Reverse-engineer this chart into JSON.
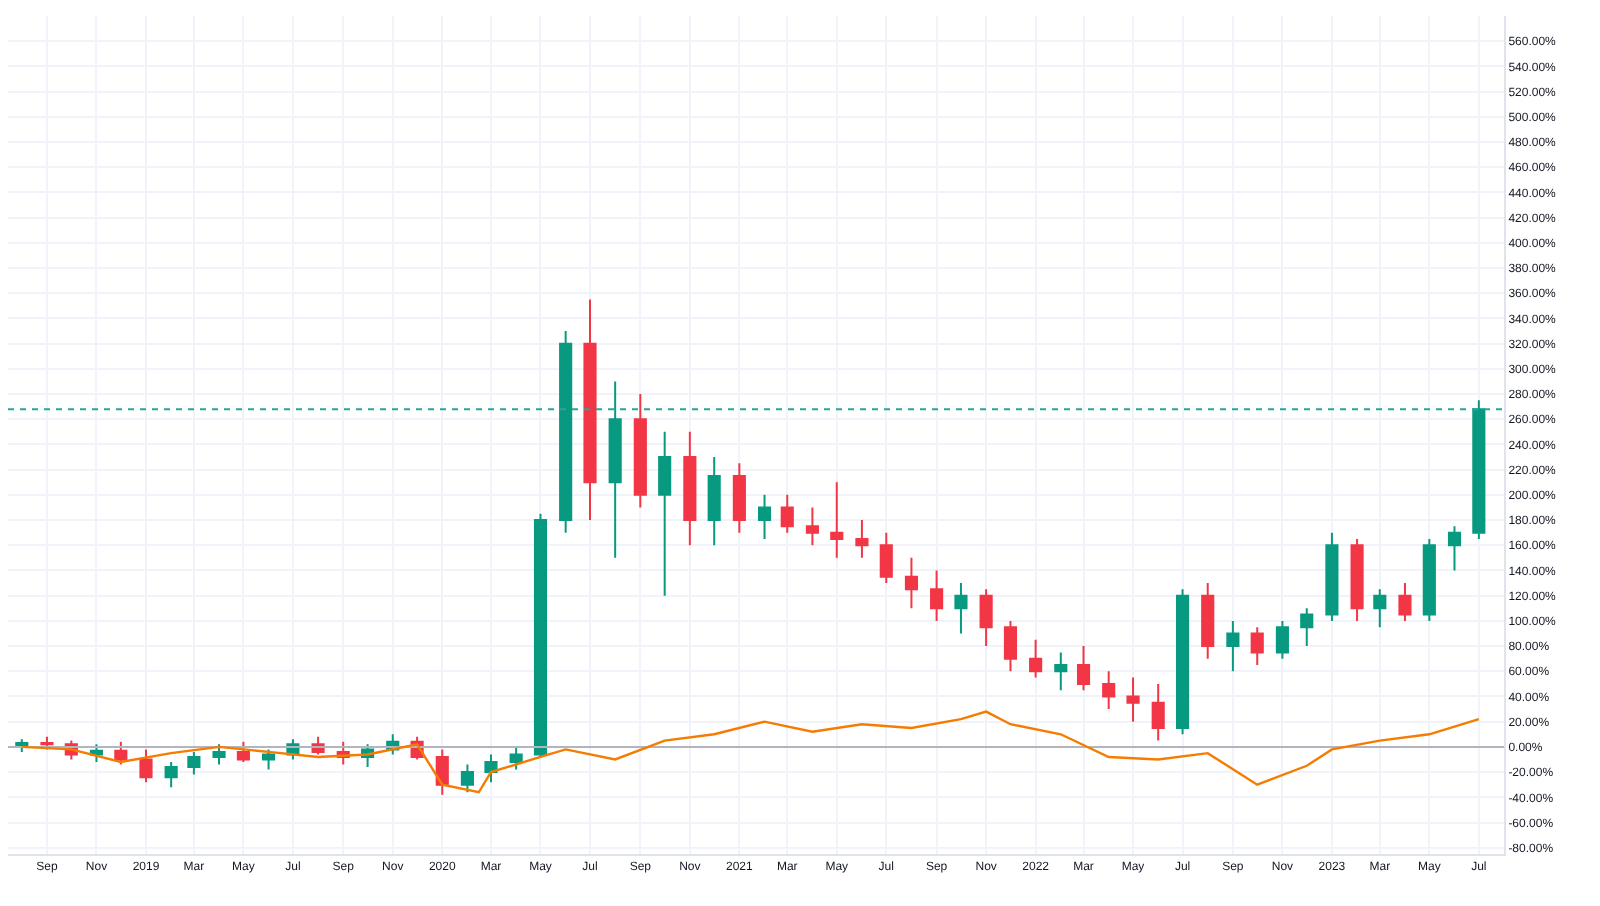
{
  "chart_data": {
    "type": "candlestick",
    "x": [
      "2018-08",
      "2018-09",
      "2018-10",
      "2018-11",
      "2018-12",
      "2019-01",
      "2019-02",
      "2019-03",
      "2019-04",
      "2019-05",
      "2019-06",
      "2019-07",
      "2019-08",
      "2019-09",
      "2019-10",
      "2019-11",
      "2019-12",
      "2020-01",
      "2020-02",
      "2020-03",
      "2020-04",
      "2020-05",
      "2020-06",
      "2020-07",
      "2020-08",
      "2020-09",
      "2020-10",
      "2020-11",
      "2020-12",
      "2021-01",
      "2021-02",
      "2021-03",
      "2021-04",
      "2021-05",
      "2021-06",
      "2021-07",
      "2021-08",
      "2021-09",
      "2021-10",
      "2021-11",
      "2021-12",
      "2022-01",
      "2022-02",
      "2022-03",
      "2022-04",
      "2022-05",
      "2022-06",
      "2022-07",
      "2022-08",
      "2022-09",
      "2022-10",
      "2022-11",
      "2022-12",
      "2023-01",
      "2023-02",
      "2023-03",
      "2023-04",
      "2023-05",
      "2023-06",
      "2023-07"
    ],
    "ohlc": [
      [
        0,
        6,
        -4,
        3
      ],
      [
        3,
        8,
        -2,
        2
      ],
      [
        2,
        5,
        -10,
        -6
      ],
      [
        -6,
        2,
        -12,
        -3
      ],
      [
        -3,
        4,
        -14,
        -10
      ],
      [
        -10,
        -2,
        -28,
        -24
      ],
      [
        -24,
        -12,
        -32,
        -16
      ],
      [
        -16,
        -4,
        -22,
        -8
      ],
      [
        -8,
        2,
        -14,
        -4
      ],
      [
        -4,
        4,
        -12,
        -10
      ],
      [
        -10,
        -2,
        -18,
        -6
      ],
      [
        -6,
        6,
        -10,
        2
      ],
      [
        2,
        8,
        -6,
        -4
      ],
      [
        -4,
        4,
        -14,
        -8
      ],
      [
        -8,
        2,
        -16,
        -2
      ],
      [
        -2,
        10,
        -6,
        4
      ],
      [
        4,
        8,
        -10,
        -8
      ],
      [
        -8,
        -2,
        -38,
        -30
      ],
      [
        -30,
        -14,
        -36,
        -20
      ],
      [
        -20,
        -6,
        -28,
        -12
      ],
      [
        -12,
        0,
        -18,
        -6
      ],
      [
        -6,
        185,
        -8,
        180
      ],
      [
        180,
        330,
        170,
        320
      ],
      [
        320,
        355,
        180,
        210
      ],
      [
        210,
        290,
        150,
        260
      ],
      [
        260,
        280,
        190,
        200
      ],
      [
        200,
        250,
        120,
        230
      ],
      [
        230,
        250,
        160,
        180
      ],
      [
        180,
        230,
        160,
        215
      ],
      [
        215,
        225,
        170,
        180
      ],
      [
        180,
        200,
        165,
        190
      ],
      [
        190,
        200,
        170,
        175
      ],
      [
        175,
        190,
        160,
        170
      ],
      [
        170,
        210,
        150,
        165
      ],
      [
        165,
        180,
        150,
        160
      ],
      [
        160,
        170,
        130,
        135
      ],
      [
        135,
        150,
        110,
        125
      ],
      [
        125,
        140,
        100,
        110
      ],
      [
        110,
        130,
        90,
        120
      ],
      [
        120,
        125,
        80,
        95
      ],
      [
        95,
        100,
        60,
        70
      ],
      [
        70,
        85,
        55,
        60
      ],
      [
        60,
        75,
        45,
        65
      ],
      [
        65,
        80,
        45,
        50
      ],
      [
        50,
        60,
        30,
        40
      ],
      [
        40,
        55,
        20,
        35
      ],
      [
        35,
        50,
        5,
        15
      ],
      [
        15,
        125,
        10,
        120
      ],
      [
        120,
        130,
        70,
        80
      ],
      [
        80,
        100,
        60,
        90
      ],
      [
        90,
        95,
        65,
        75
      ],
      [
        75,
        100,
        70,
        95
      ],
      [
        95,
        110,
        80,
        105
      ],
      [
        105,
        170,
        100,
        160
      ],
      [
        160,
        165,
        100,
        110
      ],
      [
        110,
        125,
        95,
        120
      ],
      [
        120,
        130,
        100,
        105
      ],
      [
        105,
        165,
        100,
        160
      ],
      [
        160,
        175,
        140,
        170
      ],
      [
        170,
        275,
        165,
        268
      ]
    ],
    "colors": [
      "#089981",
      "#f23645",
      "#f23645",
      "#089981",
      "#f23645",
      "#f23645",
      "#089981",
      "#089981",
      "#089981",
      "#f23645",
      "#089981",
      "#089981",
      "#f23645",
      "#f23645",
      "#089981",
      "#089981",
      "#f23645",
      "#f23645",
      "#089981",
      "#089981",
      "#089981",
      "#089981",
      "#089981",
      "#f23645",
      "#089981",
      "#f23645",
      "#089981",
      "#f23645",
      "#089981",
      "#f23645",
      "#089981",
      "#f23645",
      "#f23645",
      "#f23645",
      "#f23645",
      "#f23645",
      "#f23645",
      "#f23645",
      "#089981",
      "#f23645",
      "#f23645",
      "#f23645",
      "#089981",
      "#f23645",
      "#f23645",
      "#f23645",
      "#f23645",
      "#089981",
      "#f23645",
      "#089981",
      "#f23645",
      "#089981",
      "#089981",
      "#089981",
      "#f23645",
      "#089981",
      "#f23645",
      "#089981",
      "#089981",
      "#089981"
    ],
    "series": [
      {
        "type": "line",
        "color": "#f57c00",
        "x": [
          "2018-08",
          "2018-10",
          "2018-12",
          "2019-02",
          "2019-04",
          "2019-06",
          "2019-08",
          "2019-10",
          "2019-12",
          "2020-01",
          "2020-02-15",
          "2020-03",
          "2020-05",
          "2020-06",
          "2020-08",
          "2020-10",
          "2020-12",
          "2021-02",
          "2021-04",
          "2021-06",
          "2021-08",
          "2021-10",
          "2021-11",
          "2021-12",
          "2022-02",
          "2022-04",
          "2022-06",
          "2022-08",
          "2022-10",
          "2022-12",
          "2023-01",
          "2023-03",
          "2023-05",
          "2023-07"
        ],
        "values": [
          0,
          -2,
          -12,
          -5,
          0,
          -4,
          -8,
          -6,
          2,
          -30,
          -36,
          -20,
          -8,
          -2,
          -10,
          5,
          10,
          20,
          12,
          18,
          15,
          22,
          28,
          18,
          10,
          -8,
          -10,
          -5,
          -30,
          -15,
          -2,
          5,
          10,
          22
        ]
      }
    ],
    "ref_lines": [
      {
        "axis": "y",
        "value": 0,
        "color": "#b2b5be",
        "line_style": "solid"
      },
      {
        "axis": "y",
        "value": 268,
        "color": "#26a69a",
        "line_style": "dotted"
      }
    ],
    "xlim": [
      "2018-07-15",
      "2023-08-01"
    ],
    "xticks": [
      {
        "value": "2018-09",
        "label": "Sep"
      },
      {
        "value": "2018-11",
        "label": "Nov"
      },
      {
        "value": "2019-01",
        "label": "2019"
      },
      {
        "value": "2019-03",
        "label": "Mar"
      },
      {
        "value": "2019-05",
        "label": "May"
      },
      {
        "value": "2019-07",
        "label": "Jul"
      },
      {
        "value": "2019-09",
        "label": "Sep"
      },
      {
        "value": "2019-11",
        "label": "Nov"
      },
      {
        "value": "2020-01",
        "label": "2020"
      },
      {
        "value": "2020-03",
        "label": "Mar"
      },
      {
        "value": "2020-05",
        "label": "May"
      },
      {
        "value": "2020-07",
        "label": "Jul"
      },
      {
        "value": "2020-09",
        "label": "Sep"
      },
      {
        "value": "2020-11",
        "label": "Nov"
      },
      {
        "value": "2021-01",
        "label": "2021"
      },
      {
        "value": "2021-03",
        "label": "Mar"
      },
      {
        "value": "2021-05",
        "label": "May"
      },
      {
        "value": "2021-07",
        "label": "Jul"
      },
      {
        "value": "2021-09",
        "label": "Sep"
      },
      {
        "value": "2021-11",
        "label": "Nov"
      },
      {
        "value": "2022-01",
        "label": "2022"
      },
      {
        "value": "2022-03",
        "label": "Mar"
      },
      {
        "value": "2022-05",
        "label": "May"
      },
      {
        "value": "2022-07",
        "label": "Jul"
      },
      {
        "value": "2022-09",
        "label": "Sep"
      },
      {
        "value": "2022-11",
        "label": "Nov"
      },
      {
        "value": "2023-01",
        "label": "2023"
      },
      {
        "value": "2023-03",
        "label": "Mar"
      },
      {
        "value": "2023-05",
        "label": "May"
      },
      {
        "value": "2023-07",
        "label": "Jul"
      }
    ],
    "ylim": [
      -85,
      580
    ],
    "yticks": [
      {
        "value": -80,
        "label": "-80.00%"
      },
      {
        "value": -60,
        "label": "-60.00%"
      },
      {
        "value": -40,
        "label": "-40.00%"
      },
      {
        "value": -20,
        "label": "-20.00%"
      },
      {
        "value": 0,
        "label": "0.00%"
      },
      {
        "value": 20,
        "label": "20.00%"
      },
      {
        "value": 40,
        "label": "40.00%"
      },
      {
        "value": 60,
        "label": "60.00%"
      },
      {
        "value": 80,
        "label": "80.00%"
      },
      {
        "value": 100,
        "label": "100.00%"
      },
      {
        "value": 120,
        "label": "120.00%"
      },
      {
        "value": 140,
        "label": "140.00%"
      },
      {
        "value": 160,
        "label": "160.00%"
      },
      {
        "value": 180,
        "label": "180.00%"
      },
      {
        "value": 200,
        "label": "200.00%"
      },
      {
        "value": 220,
        "label": "220.00%"
      },
      {
        "value": 240,
        "label": "240.00%"
      },
      {
        "value": 260,
        "label": "260.00%"
      },
      {
        "value": 280,
        "label": "280.00%"
      },
      {
        "value": 300,
        "label": "300.00%"
      },
      {
        "value": 320,
        "label": "320.00%"
      },
      {
        "value": 340,
        "label": "340.00%"
      },
      {
        "value": 360,
        "label": "360.00%"
      },
      {
        "value": 380,
        "label": "380.00%"
      },
      {
        "value": 400,
        "label": "400.00%"
      },
      {
        "value": 420,
        "label": "420.00%"
      },
      {
        "value": 440,
        "label": "440.00%"
      },
      {
        "value": 460,
        "label": "460.00%"
      },
      {
        "value": 480,
        "label": "480.00%"
      },
      {
        "value": 500,
        "label": "500.00%"
      },
      {
        "value": 520,
        "label": "520.00%"
      },
      {
        "value": 540,
        "label": "540.00%"
      },
      {
        "value": 560,
        "label": "560.00%"
      }
    ],
    "grid": true
  }
}
